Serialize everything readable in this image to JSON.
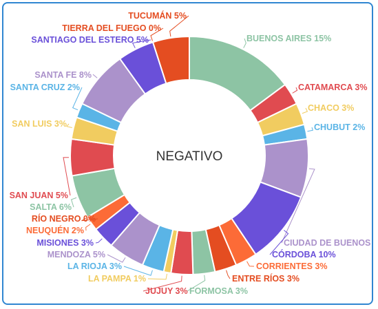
{
  "card": {
    "border_color": "#2f86d1"
  },
  "chart_data": {
    "type": "pie",
    "variant": "donut",
    "center_label": "NEGATIVO",
    "slices": [
      {
        "label": "BUENOS AIRES 15%",
        "value": 15,
        "color": "#8dc4a4"
      },
      {
        "label": "CATAMARCA 3%",
        "value": 3,
        "color": "#e04b50"
      },
      {
        "label": "CHACO 3%",
        "value": 3,
        "color": "#f1cc60"
      },
      {
        "label": "CHUBUT 2%",
        "value": 2,
        "color": "#5ab4e6"
      },
      {
        "label": "CIUDAD DE BUENOS",
        "value": 8,
        "color": "#ab92cb"
      },
      {
        "label": "CÓRDOBA 10%",
        "value": 10,
        "color": "#6a50d9"
      },
      {
        "label": "CORRIENTES 3%",
        "value": 3,
        "color": "#fc6b37"
      },
      {
        "label": "ENTRE RÍOS 3%",
        "value": 3,
        "color": "#e44d21"
      },
      {
        "label": "FORMOSA 3%",
        "value": 3,
        "color": "#8dc4a4"
      },
      {
        "label": "JUJUY 3%",
        "value": 3,
        "color": "#e04b50"
      },
      {
        "label": "LA PAMPA 1%",
        "value": 1,
        "color": "#f1cc60"
      },
      {
        "label": "LA RIOJA 3%",
        "value": 3,
        "color": "#5ab4e6"
      },
      {
        "label": "MENDOZA 5%",
        "value": 5,
        "color": "#ab92cb"
      },
      {
        "label": "MISIONES 3%",
        "value": 3,
        "color": "#6a50d9"
      },
      {
        "label": "NEUQUÉN 2%",
        "value": 2,
        "color": "#fc6b37"
      },
      {
        "label": "RÍO NEGRO 0%",
        "value": 0,
        "color": "#e44d21"
      },
      {
        "label": "SALTA 6%",
        "value": 6,
        "color": "#8dc4a4"
      },
      {
        "label": "SAN JUAN 5%",
        "value": 5,
        "color": "#e04b50"
      },
      {
        "label": "SAN LUIS 3%",
        "value": 3,
        "color": "#f1cc60"
      },
      {
        "label": "SANTA CRUZ 2%",
        "value": 2,
        "color": "#5ab4e6"
      },
      {
        "label": "SANTA FE 8%",
        "value": 8,
        "color": "#ab92cb"
      },
      {
        "label": "SANTIAGO DEL ESTERO 5%",
        "value": 5,
        "color": "#6a50d9"
      },
      {
        "label": "TIERRA DEL FUEGO 0%",
        "value": 0,
        "color": "#e44d21"
      },
      {
        "label": "TUCUMÁN 5%",
        "value": 5,
        "color": "#e44d21"
      }
    ]
  }
}
